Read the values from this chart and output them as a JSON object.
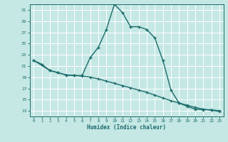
{
  "xlabel": "Humidex (Indice chaleur)",
  "background_color": "#c5e8e5",
  "grid_color": "#ffffff",
  "line_color": "#1a6b6b",
  "xlim": [
    -0.5,
    23.5
  ],
  "ylim": [
    12,
    32
  ],
  "xticks": [
    0,
    1,
    2,
    3,
    4,
    5,
    6,
    7,
    8,
    9,
    10,
    11,
    12,
    13,
    14,
    15,
    16,
    17,
    18,
    19,
    20,
    21,
    22,
    23
  ],
  "yticks": [
    13,
    15,
    17,
    19,
    21,
    23,
    25,
    27,
    29,
    31
  ],
  "curve1_x": [
    0,
    1,
    2,
    3,
    4,
    5,
    6,
    7,
    8,
    9,
    10,
    11,
    12,
    13,
    14,
    15,
    16,
    17,
    18,
    19,
    20,
    21,
    22,
    23
  ],
  "curve1_y": [
    22.0,
    21.3,
    20.2,
    19.8,
    19.4,
    19.3,
    19.3,
    22.5,
    24.3,
    27.5,
    32.0,
    30.5,
    28.0,
    28.0,
    27.5,
    26.0,
    22.0,
    16.7,
    14.4,
    13.8,
    13.3,
    13.2,
    13.2,
    13.0
  ],
  "curve2_x": [
    0,
    2,
    3,
    4,
    5,
    6,
    7,
    8,
    9,
    10,
    11,
    12,
    13,
    14,
    15,
    16,
    17,
    18,
    19,
    20,
    21,
    22,
    23
  ],
  "curve2_y": [
    22.0,
    20.2,
    19.8,
    19.4,
    19.3,
    19.2,
    19.0,
    18.7,
    18.3,
    17.9,
    17.5,
    17.1,
    16.7,
    16.3,
    15.8,
    15.3,
    14.8,
    14.4,
    14.0,
    13.6,
    13.3,
    13.1,
    12.9
  ]
}
